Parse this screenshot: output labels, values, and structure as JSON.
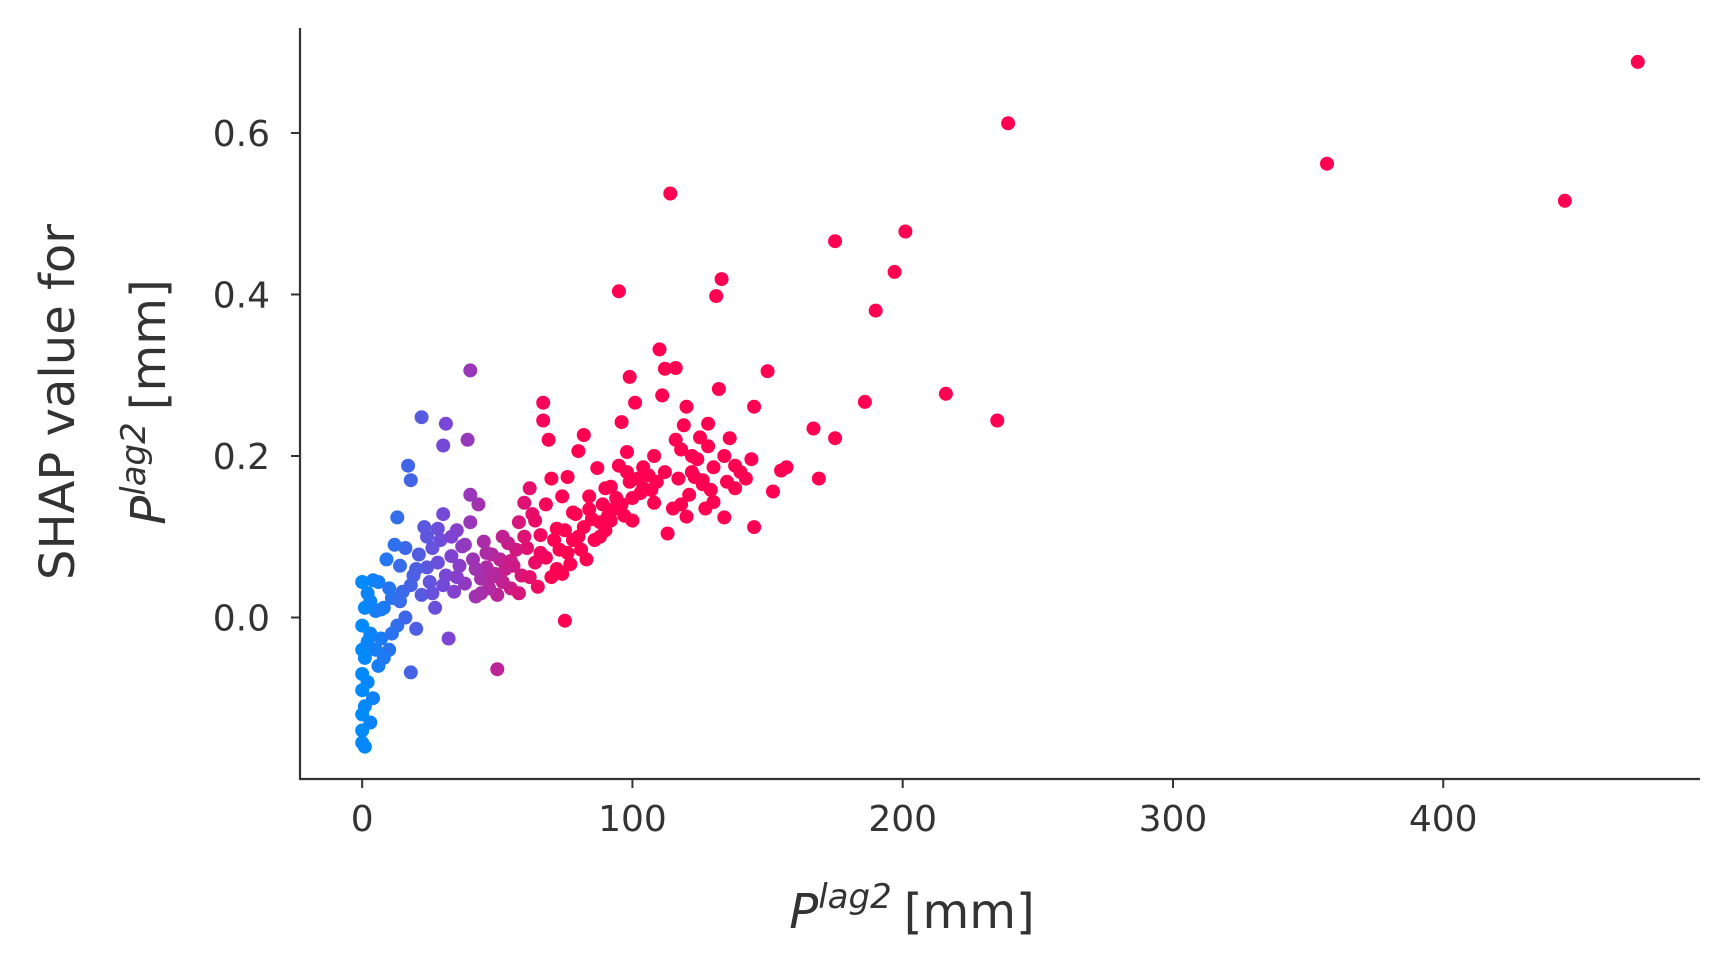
{
  "chart_data": {
    "type": "scatter",
    "xlabel": {
      "symbol": "P",
      "superscript": "lag2",
      "unit": "[mm]"
    },
    "ylabel": {
      "line1": "SHAP value for",
      "symbol": "P",
      "superscript": "lag2",
      "unit": "[mm]"
    },
    "xlim": [
      -23,
      495
    ],
    "ylim": [
      -0.2,
      0.73
    ],
    "xticks": [
      0,
      100,
      200,
      300,
      400
    ],
    "xtick_labels": [
      "0",
      "100",
      "200",
      "300",
      "400"
    ],
    "yticks": [
      0.0,
      0.2,
      0.4,
      0.6
    ],
    "ytick_labels": [
      "0.0",
      "0.2",
      "0.4",
      "0.6"
    ],
    "grid": false,
    "color_scale": {
      "low": "#008afb",
      "mid": "#7b46d6",
      "high": "#ff0052"
    },
    "points": [
      [
        472,
        0.688
      ],
      [
        445,
        0.516
      ],
      [
        357,
        0.562
      ],
      [
        239,
        0.612
      ],
      [
        235,
        0.244
      ],
      [
        216,
        0.277
      ],
      [
        201,
        0.478
      ],
      [
        197,
        0.428
      ],
      [
        190,
        0.38
      ],
      [
        186,
        0.267
      ],
      [
        175,
        0.466
      ],
      [
        175,
        0.222
      ],
      [
        169,
        0.172
      ],
      [
        167,
        0.234
      ],
      [
        157,
        0.186
      ],
      [
        155,
        0.182
      ],
      [
        152,
        0.156
      ],
      [
        150,
        0.305
      ],
      [
        145,
        0.261
      ],
      [
        145,
        0.112
      ],
      [
        144,
        0.196
      ],
      [
        142,
        0.172
      ],
      [
        140,
        0.18
      ],
      [
        138,
        0.188
      ],
      [
        136,
        0.222
      ],
      [
        135,
        0.168
      ],
      [
        134,
        0.124
      ],
      [
        133,
        0.419
      ],
      [
        132,
        0.283
      ],
      [
        131,
        0.398
      ],
      [
        130,
        0.186
      ],
      [
        130,
        0.143
      ],
      [
        129,
        0.158
      ],
      [
        128,
        0.212
      ],
      [
        127,
        0.135
      ],
      [
        126,
        0.165
      ],
      [
        125,
        0.223
      ],
      [
        124,
        0.196
      ],
      [
        123,
        0.174
      ],
      [
        122,
        0.18
      ],
      [
        121,
        0.152
      ],
      [
        120,
        0.261
      ],
      [
        120,
        0.125
      ],
      [
        119,
        0.238
      ],
      [
        118,
        0.208
      ],
      [
        117,
        0.172
      ],
      [
        116,
        0.309
      ],
      [
        115,
        0.135
      ],
      [
        114,
        0.525
      ],
      [
        113,
        0.104
      ],
      [
        112,
        0.308
      ],
      [
        111,
        0.275
      ],
      [
        110,
        0.332
      ],
      [
        109,
        0.168
      ],
      [
        108,
        0.142
      ],
      [
        107,
        0.158
      ],
      [
        106,
        0.176
      ],
      [
        104,
        0.186
      ],
      [
        103,
        0.154
      ],
      [
        102,
        0.172
      ],
      [
        101,
        0.266
      ],
      [
        100,
        0.148
      ],
      [
        99,
        0.298
      ],
      [
        99,
        0.168
      ],
      [
        98,
        0.205
      ],
      [
        97,
        0.126
      ],
      [
        96,
        0.242
      ],
      [
        95,
        0.404
      ],
      [
        95,
        0.188
      ],
      [
        94,
        0.148
      ],
      [
        93,
        0.134
      ],
      [
        92,
        0.162
      ],
      [
        91,
        0.126
      ],
      [
        90,
        0.108
      ],
      [
        89,
        0.14
      ],
      [
        88,
        0.118
      ],
      [
        87,
        0.185
      ],
      [
        86,
        0.096
      ],
      [
        85,
        0.122
      ],
      [
        84,
        0.134
      ],
      [
        83,
        0.072
      ],
      [
        82,
        0.226
      ],
      [
        82,
        0.112
      ],
      [
        81,
        0.084
      ],
      [
        80,
        0.206
      ],
      [
        79,
        0.128
      ],
      [
        78,
        0.096
      ],
      [
        77,
        0.066
      ],
      [
        76,
        0.174
      ],
      [
        75,
        0.108
      ],
      [
        75,
        -0.004
      ],
      [
        74,
        0.054
      ],
      [
        73,
        0.084
      ],
      [
        72,
        0.06
      ],
      [
        71,
        0.096
      ],
      [
        70,
        0.172
      ],
      [
        69,
        0.22
      ],
      [
        68,
        0.074
      ],
      [
        67,
        0.266
      ],
      [
        67,
        0.244
      ],
      [
        66,
        0.102
      ],
      [
        65,
        0.038
      ],
      [
        64,
        0.068
      ],
      [
        63,
        0.128
      ],
      [
        62,
        0.16
      ],
      [
        61,
        0.086
      ],
      [
        60,
        0.142
      ],
      [
        59,
        0.052
      ],
      [
        58,
        0.118
      ],
      [
        57,
        0.084
      ],
      [
        56,
        0.064
      ],
      [
        55,
        0.036
      ],
      [
        54,
        0.092
      ],
      [
        53,
        0.06
      ],
      [
        52,
        0.044
      ],
      [
        51,
        0.072
      ],
      [
        50,
        -0.064
      ],
      [
        50,
        0.028
      ],
      [
        49,
        0.054
      ],
      [
        48,
        0.078
      ],
      [
        47,
        0.036
      ],
      [
        46,
        0.062
      ],
      [
        45,
        0.094
      ],
      [
        44,
        0.048
      ],
      [
        43,
        0.14
      ],
      [
        42,
        0.026
      ],
      [
        41,
        0.072
      ],
      [
        40,
        0.306
      ],
      [
        40,
        0.152
      ],
      [
        40,
        0.118
      ],
      [
        39,
        0.22
      ],
      [
        38,
        0.042
      ],
      [
        37,
        0.088
      ],
      [
        36,
        0.064
      ],
      [
        35,
        0.108
      ],
      [
        34,
        0.032
      ],
      [
        33,
        0.076
      ],
      [
        32,
        -0.026
      ],
      [
        31,
        0.24
      ],
      [
        31,
        0.052
      ],
      [
        30,
        0.213
      ],
      [
        30,
        0.128
      ],
      [
        29,
        0.096
      ],
      [
        28,
        0.068
      ],
      [
        27,
        0.012
      ],
      [
        26,
        0.086
      ],
      [
        25,
        0.044
      ],
      [
        24,
        0.062
      ],
      [
        23,
        0.112
      ],
      [
        22,
        0.248
      ],
      [
        22,
        0.028
      ],
      [
        21,
        0.078
      ],
      [
        20,
        -0.014
      ],
      [
        19,
        0.052
      ],
      [
        18,
        0.17
      ],
      [
        17,
        0.188
      ],
      [
        18,
        -0.068
      ],
      [
        16,
        0.086
      ],
      [
        15,
        0.032
      ],
      [
        14,
        0.064
      ],
      [
        13,
        0.124
      ],
      [
        13,
        -0.01
      ],
      [
        12,
        0.09
      ],
      [
        11,
        0.024
      ],
      [
        10,
        -0.04
      ],
      [
        9,
        0.072
      ],
      [
        8,
        0.012
      ],
      [
        7,
        -0.026
      ],
      [
        6,
        0.044
      ],
      [
        6,
        -0.06
      ],
      [
        5,
        0.008
      ],
      [
        4,
        -0.1
      ],
      [
        4,
        0.046
      ],
      [
        3,
        -0.02
      ],
      [
        3,
        -0.13
      ],
      [
        2,
        0.03
      ],
      [
        2,
        -0.08
      ],
      [
        1,
        0.012
      ],
      [
        1,
        -0.05
      ],
      [
        1,
        -0.11
      ],
      [
        0,
        0.044
      ],
      [
        0,
        -0.01
      ],
      [
        0,
        -0.04
      ],
      [
        0,
        -0.07
      ],
      [
        0,
        -0.12
      ],
      [
        0,
        -0.155
      ],
      [
        0,
        -0.14
      ],
      [
        1,
        -0.16
      ],
      [
        0,
        -0.09
      ],
      [
        2,
        -0.03
      ],
      [
        3,
        0.02
      ],
      [
        5,
        -0.04
      ],
      [
        7,
        0.01
      ],
      [
        8,
        -0.05
      ],
      [
        10,
        0.036
      ],
      [
        11,
        -0.02
      ],
      [
        14,
        0.02
      ],
      [
        16,
        0.0
      ],
      [
        18,
        0.04
      ],
      [
        20,
        0.06
      ],
      [
        24,
        0.1
      ],
      [
        26,
        0.03
      ],
      [
        28,
        0.11
      ],
      [
        30,
        0.04
      ],
      [
        33,
        0.1
      ],
      [
        35,
        0.05
      ],
      [
        38,
        0.09
      ],
      [
        42,
        0.06
      ],
      [
        44,
        0.03
      ],
      [
        46,
        0.08
      ],
      [
        48,
        0.05
      ],
      [
        52,
        0.1
      ],
      [
        55,
        0.07
      ],
      [
        58,
        0.03
      ],
      [
        60,
        0.1
      ],
      [
        62,
        0.05
      ],
      [
        64,
        0.12
      ],
      [
        66,
        0.08
      ],
      [
        68,
        0.14
      ],
      [
        70,
        0.05
      ],
      [
        72,
        0.11
      ],
      [
        74,
        0.15
      ],
      [
        76,
        0.08
      ],
      [
        78,
        0.13
      ],
      [
        80,
        0.1
      ],
      [
        84,
        0.15
      ],
      [
        88,
        0.1
      ],
      [
        90,
        0.16
      ],
      [
        92,
        0.12
      ],
      [
        96,
        0.14
      ],
      [
        98,
        0.18
      ],
      [
        100,
        0.12
      ],
      [
        104,
        0.16
      ],
      [
        108,
        0.2
      ],
      [
        112,
        0.18
      ],
      [
        116,
        0.22
      ],
      [
        118,
        0.14
      ],
      [
        122,
        0.2
      ],
      [
        126,
        0.17
      ],
      [
        128,
        0.24
      ],
      [
        134,
        0.2
      ],
      [
        138,
        0.16
      ]
    ]
  }
}
